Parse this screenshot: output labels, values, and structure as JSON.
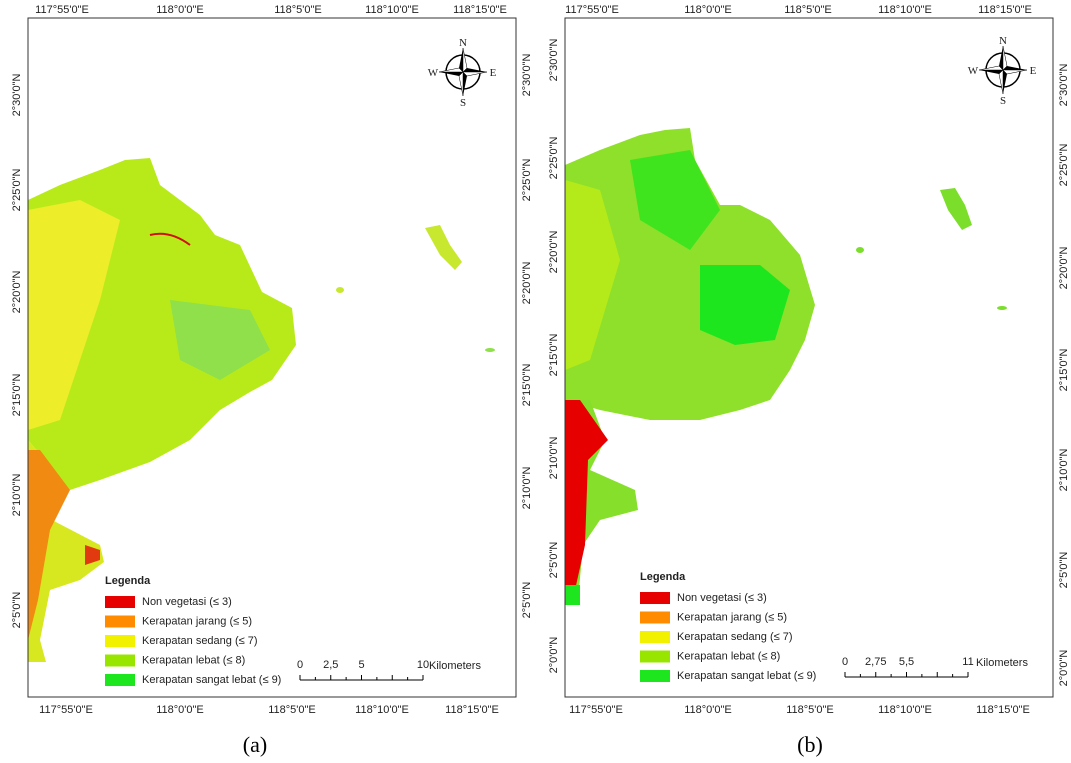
{
  "maps": [
    {
      "caption": "(a)",
      "top_labels": [
        "117°55'0\"E",
        "118°0'0\"E",
        "118°5'0\"E",
        "118°10'0\"E",
        "118°15'0\"E"
      ],
      "bottom_labels": [
        "117°55'0\"E",
        "118°0'0\"E",
        "118°5'0\"E",
        "118°10'0\"E",
        "118°15'0\"E"
      ],
      "left_labels": [
        "2°30'0\"N",
        "2°25'0\"N",
        "2°20'0\"N",
        "2°15'0\"N",
        "2°10'0\"N",
        "2°5'0\"N"
      ],
      "right_labels": [
        "2°30'0\"N",
        "2°25'0\"N",
        "2°20'0\"N",
        "2°15'0\"N",
        "2°10'0\"N",
        "2°5'0\"N"
      ],
      "compass": {
        "n": "N",
        "e": "E",
        "s": "S",
        "w": "W"
      },
      "legend": {
        "title": "Legenda",
        "items": [
          {
            "label": "Non vegetasi (≤ 3)",
            "color": "#e60000"
          },
          {
            "label": "Kerapatan jarang (≤ 5)",
            "color": "#ff8c00"
          },
          {
            "label": "Kerapatan sedang (≤ 7)",
            "color": "#f2f200"
          },
          {
            "label": "Kerapatan lebat (≤ 8)",
            "color": "#98e600"
          },
          {
            "label": "Kerapatan sangat lebat (≤ 9)",
            "color": "#1ee61e"
          }
        ]
      },
      "scale": {
        "ticks": [
          "0",
          "2,5",
          "5",
          "10"
        ],
        "unit": "Kilometers"
      }
    },
    {
      "caption": "(b)",
      "top_labels": [
        "117°55'0\"E",
        "118°0'0\"E",
        "118°5'0\"E",
        "118°10'0\"E",
        "118°15'0\"E"
      ],
      "bottom_labels": [
        "117°55'0\"E",
        "118°0'0\"E",
        "118°5'0\"E",
        "118°10'0\"E",
        "118°15'0\"E"
      ],
      "left_labels": [
        "2°30'0\"N",
        "2°25'0\"N",
        "2°20'0\"N",
        "2°15'0\"N",
        "2°10'0\"N",
        "2°5'0\"N",
        "2°0'0\"N"
      ],
      "right_labels": [
        "2°30'0\"N",
        "2°25'0\"N",
        "2°20'0\"N",
        "2°15'0\"N",
        "2°10'0\"N",
        "2°5'0\"N",
        "2°0'0\"N"
      ],
      "compass": {
        "n": "N",
        "e": "E",
        "s": "S",
        "w": "W"
      },
      "legend": {
        "title": "Legenda",
        "items": [
          {
            "label": "Non vegetasi (≤ 3)",
            "color": "#e60000"
          },
          {
            "label": "Kerapatan jarang (≤ 5)",
            "color": "#ff8c00"
          },
          {
            "label": "Kerapatan sedang (≤ 7)",
            "color": "#f2f200"
          },
          {
            "label": "Kerapatan lebat (≤ 8)",
            "color": "#98e600"
          },
          {
            "label": "Kerapatan sangat lebat (≤ 9)",
            "color": "#1ee61e"
          }
        ]
      },
      "scale": {
        "ticks": [
          "0",
          "2,75",
          "5,5",
          "11"
        ],
        "unit": "Kilometers"
      }
    }
  ]
}
